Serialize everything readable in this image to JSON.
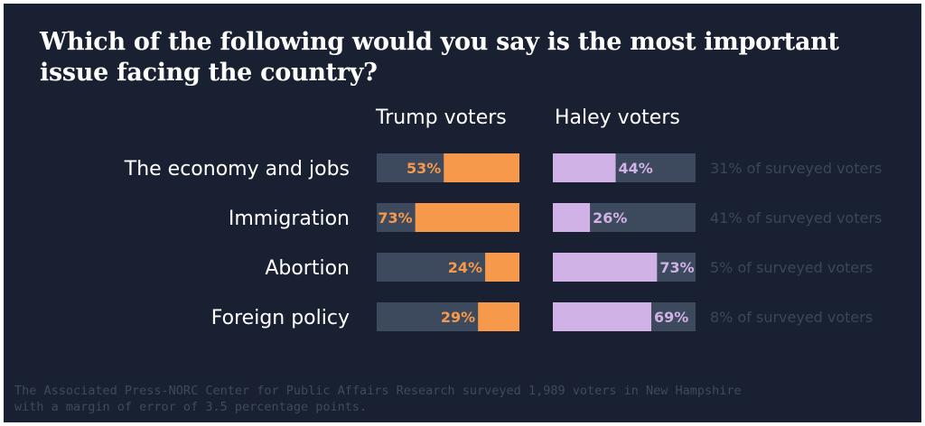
{
  "title": "Which of the following would you say is the most important issue facing the country?",
  "footnote": "The Associated Press-NORC Center for Public Affairs Research surveyed 1,989 voters in New Hampshire\nwith a margin of error of 3.5 percentage points.",
  "colors": {
    "background": "#192031",
    "track": "#3d495c",
    "trump": "#f7994a",
    "haley": "#d0b2e6",
    "share_text": "#3b4658",
    "label_text": "#ffffff"
  },
  "chart_data": {
    "type": "bar",
    "title": "Which of the following would you say is the most important issue facing the country?",
    "categories": [
      "The economy and jobs",
      "Immigration",
      "Abortion",
      "Foreign policy"
    ],
    "series": [
      {
        "name": "Trump voters",
        "values": [
          53,
          73,
          24,
          29
        ],
        "direction": "right-to-left"
      },
      {
        "name": "Haley voters",
        "values": [
          44,
          26,
          73,
          69
        ],
        "direction": "left-to-right"
      }
    ],
    "value_labels": {
      "Trump voters": [
        "53%",
        "73%",
        "24%",
        "29%"
      ],
      "Haley voters": [
        "44%",
        "26%",
        "73%",
        "69%"
      ]
    },
    "share_of_surveyed": [
      31,
      41,
      5,
      8
    ],
    "share_labels": [
      "31% of surveyed voters",
      "41% of surveyed voters",
      "5% of surveyed voters",
      "8% of surveyed voters"
    ],
    "xlim": [
      0,
      100
    ],
    "grid": false,
    "legend": "column headers"
  }
}
